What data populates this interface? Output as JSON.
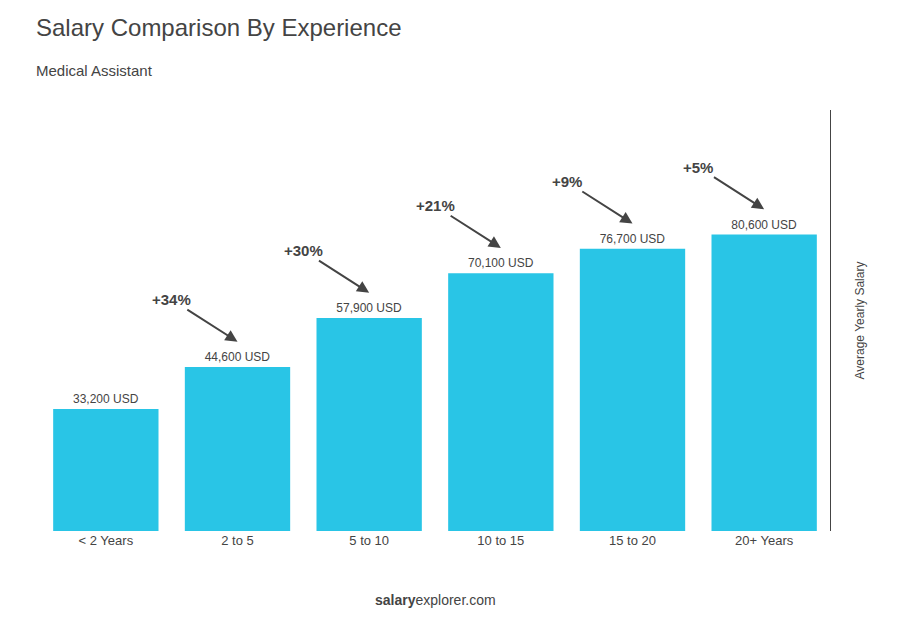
{
  "chart_data": {
    "type": "bar",
    "title": "Salary Comparison By Experience",
    "subtitle": "Medical Assistant",
    "ylabel": "Average Yearly Salary",
    "categories": [
      "< 2 Years",
      "2 to 5",
      "5 to 10",
      "10 to 15",
      "15 to 20",
      "20+ Years"
    ],
    "values": [
      33200,
      44600,
      57900,
      70100,
      76700,
      80600
    ],
    "value_labels": [
      "33,200 USD",
      "44,600 USD",
      "57,900 USD",
      "70,100 USD",
      "76,700 USD",
      "80,600 USD"
    ],
    "data_labels": true,
    "color": "#29C5E6",
    "annotations": [
      "+34%",
      "+30%",
      "+21%",
      "+9%",
      "+5%"
    ],
    "footer": [
      "salary",
      "explorer.com"
    ],
    "ylim": [
      0,
      114452
    ],
    "tick_labels": "x",
    "grid": false
  }
}
